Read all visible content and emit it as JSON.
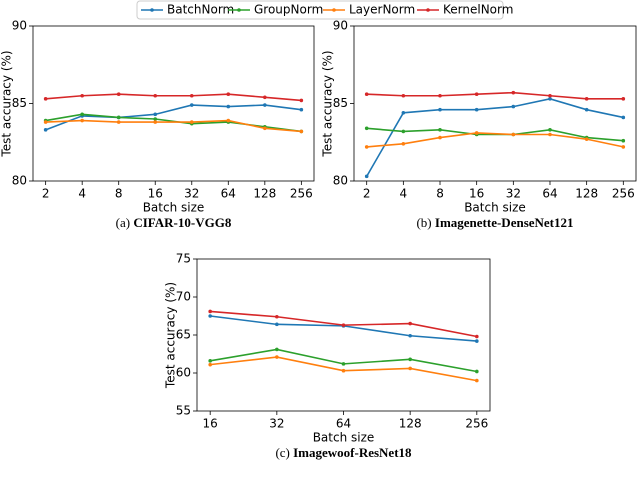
{
  "chart_data": [
    {
      "type": "line",
      "caption_label": "(a)",
      "title": "CIFAR-10-VGG8",
      "x_label": "Batch size",
      "y_label": "Test accuracy (%)",
      "categories": [
        "2",
        "4",
        "8",
        "16",
        "32",
        "64",
        "128",
        "256"
      ],
      "ylim": [
        80,
        90
      ],
      "yticks": [
        80,
        85,
        90
      ],
      "series": [
        {
          "name": "BatchNorm",
          "color": "#1f77b4",
          "values": [
            83.3,
            84.2,
            84.1,
            84.3,
            84.9,
            84.8,
            84.9,
            84.6
          ]
        },
        {
          "name": "GroupNorm",
          "color": "#2ca02c",
          "values": [
            83.9,
            84.3,
            84.1,
            84.0,
            83.7,
            83.8,
            83.5,
            83.2
          ]
        },
        {
          "name": "LayerNorm",
          "color": "#ff7f0e",
          "values": [
            83.8,
            83.9,
            83.8,
            83.8,
            83.8,
            83.9,
            83.4,
            83.2
          ]
        },
        {
          "name": "KernelNorm",
          "color": "#d62728",
          "values": [
            85.3,
            85.5,
            85.6,
            85.5,
            85.5,
            85.6,
            85.4,
            85.2
          ]
        }
      ]
    },
    {
      "type": "line",
      "caption_label": "(b)",
      "title": "Imagenette-DenseNet121",
      "x_label": "Batch size",
      "y_label": "Test accuracy (%)",
      "categories": [
        "2",
        "4",
        "8",
        "16",
        "32",
        "64",
        "128",
        "256"
      ],
      "ylim": [
        80,
        90
      ],
      "yticks": [
        80,
        85,
        90
      ],
      "series": [
        {
          "name": "BatchNorm",
          "color": "#1f77b4",
          "values": [
            80.3,
            84.4,
            84.6,
            84.6,
            84.8,
            85.3,
            84.6,
            84.1
          ]
        },
        {
          "name": "GroupNorm",
          "color": "#2ca02c",
          "values": [
            83.4,
            83.2,
            83.3,
            83.0,
            83.0,
            83.3,
            82.8,
            82.6
          ]
        },
        {
          "name": "LayerNorm",
          "color": "#ff7f0e",
          "values": [
            82.2,
            82.4,
            82.8,
            83.1,
            83.0,
            83.0,
            82.7,
            82.2
          ]
        },
        {
          "name": "KernelNorm",
          "color": "#d62728",
          "values": [
            85.6,
            85.5,
            85.5,
            85.6,
            85.7,
            85.5,
            85.3,
            85.3
          ]
        }
      ]
    },
    {
      "type": "line",
      "caption_label": "(c)",
      "title": "Imagewoof-ResNet18",
      "x_label": "Batch size",
      "y_label": "Test accuracy (%)",
      "categories": [
        "16",
        "32",
        "64",
        "128",
        "256"
      ],
      "ylim": [
        55,
        75
      ],
      "yticks": [
        55,
        60,
        65,
        70,
        75
      ],
      "series": [
        {
          "name": "BatchNorm",
          "color": "#1f77b4",
          "values": [
            67.5,
            66.4,
            66.2,
            64.9,
            64.2
          ]
        },
        {
          "name": "GroupNorm",
          "color": "#2ca02c",
          "values": [
            61.6,
            63.1,
            61.2,
            61.8,
            60.2
          ]
        },
        {
          "name": "LayerNorm",
          "color": "#ff7f0e",
          "values": [
            61.1,
            62.1,
            60.3,
            60.6,
            59.0
          ]
        },
        {
          "name": "KernelNorm",
          "color": "#d62728",
          "values": [
            68.1,
            67.4,
            66.3,
            66.5,
            64.8
          ]
        }
      ]
    }
  ]
}
